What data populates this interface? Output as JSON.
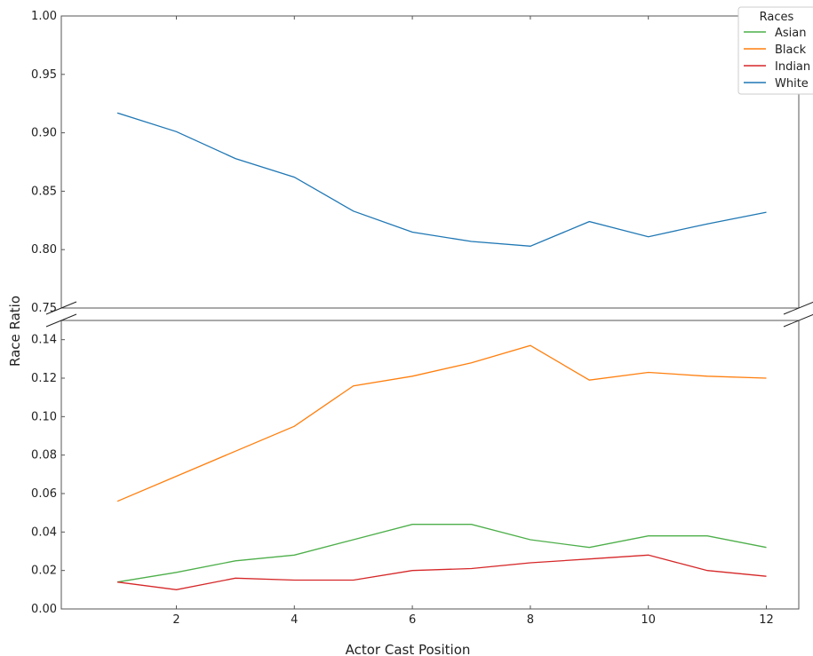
{
  "chart_data": {
    "type": "line",
    "title": "",
    "xlabel": "Actor Cast Position",
    "ylabel": "Race Ratio",
    "broken_y_axis": true,
    "x": [
      1,
      2,
      3,
      4,
      5,
      6,
      7,
      8,
      9,
      10,
      11,
      12
    ],
    "xticks": [
      2,
      4,
      6,
      8,
      10,
      12
    ],
    "xtick_labels": [
      "2",
      "4",
      "6",
      "8",
      "10",
      "12"
    ],
    "xlim": [
      0.05,
      12.55
    ],
    "panels": [
      {
        "name": "top",
        "ylim": [
          0.75,
          1.0
        ],
        "yticks": [
          0.75,
          0.8,
          0.85,
          0.9,
          0.95,
          1.0
        ],
        "ytick_labels": [
          "0.75",
          "0.80",
          "0.85",
          "0.90",
          "0.95",
          "1.00"
        ],
        "series": [
          "White"
        ]
      },
      {
        "name": "bottom",
        "ylim": [
          0.0,
          0.15
        ],
        "yticks": [
          0.0,
          0.02,
          0.04,
          0.06,
          0.08,
          0.1,
          0.12,
          0.14
        ],
        "ytick_labels": [
          "0.00",
          "0.02",
          "0.04",
          "0.06",
          "0.08",
          "0.10",
          "0.12",
          "0.14"
        ],
        "series": [
          "Asian",
          "Black",
          "Indian"
        ]
      }
    ],
    "series": [
      {
        "name": "Asian",
        "color": "#4daf4a",
        "values": [
          0.014,
          0.019,
          0.025,
          0.028,
          0.036,
          0.044,
          0.044,
          0.036,
          0.032,
          0.038,
          0.038,
          0.032
        ]
      },
      {
        "name": "Black",
        "color": "#ff7f0e",
        "values": [
          0.056,
          0.069,
          0.082,
          0.095,
          0.116,
          0.121,
          0.128,
          0.137,
          0.119,
          0.123,
          0.121,
          0.12
        ]
      },
      {
        "name": "Indian",
        "color": "#d62728",
        "values": [
          0.014,
          0.01,
          0.016,
          0.015,
          0.015,
          0.02,
          0.021,
          0.024,
          0.026,
          0.028,
          0.02,
          0.017
        ]
      },
      {
        "name": "White",
        "color": "#1f77b4",
        "values": [
          0.917,
          0.901,
          0.878,
          0.862,
          0.833,
          0.815,
          0.807,
          0.803,
          0.824,
          0.811,
          0.822,
          0.832
        ]
      }
    ],
    "legend": {
      "title": "Races",
      "entries": [
        "Asian",
        "Black",
        "Indian",
        "White"
      ],
      "placement": "top-right"
    },
    "grid": false
  }
}
